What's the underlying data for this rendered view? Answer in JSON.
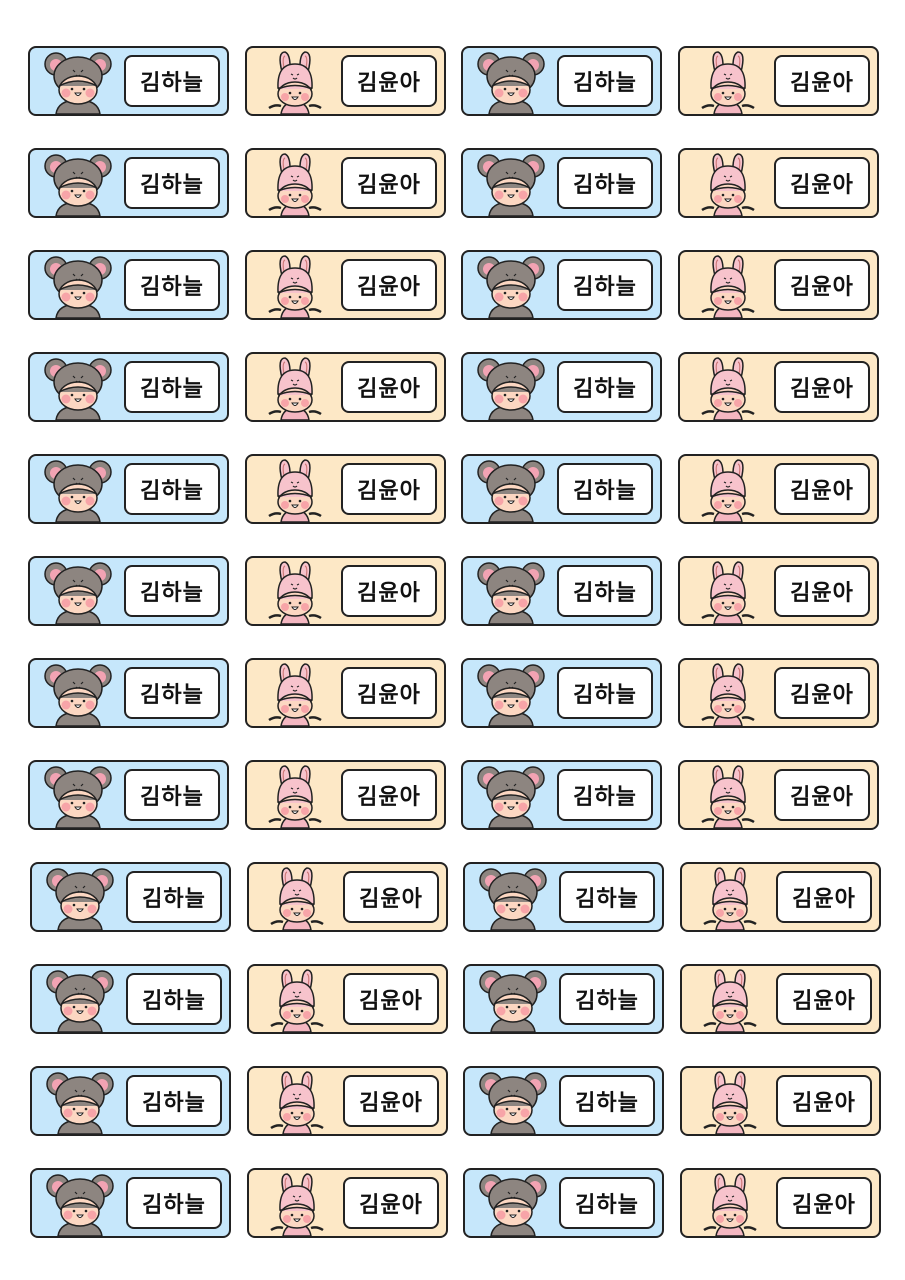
{
  "colors": {
    "mouse_bg": "#c6e7fb",
    "bunny_bg": "#fde8c6",
    "border": "#222222"
  },
  "sticker_types": {
    "mouse": {
      "name": "김하늘",
      "icon": "mouse-hat-child-icon"
    },
    "bunny": {
      "name": "김윤아",
      "icon": "bunny-hat-child-icon"
    }
  },
  "layout_pattern": [
    "mouse",
    "bunny",
    "mouse",
    "bunny"
  ],
  "rows": [
    [
      "김하늘",
      "김윤아",
      "김하늘",
      "김윤아"
    ],
    [
      "김하늘",
      "김윤아",
      "김하늘",
      "김윤아"
    ],
    [
      "김하늘",
      "김윤아",
      "김하늘",
      "김윤아"
    ],
    [
      "김하늘",
      "김윤아",
      "김하늘",
      "김윤아"
    ],
    [
      "김하늘",
      "김윤아",
      "김하늘",
      "김윤아"
    ],
    [
      "김하늘",
      "김윤아",
      "김하늘",
      "김윤아"
    ],
    [
      "김하늘",
      "김윤아",
      "김하늘",
      "김윤아"
    ],
    [
      "김하늘",
      "김윤아",
      "김하늘",
      "김윤아"
    ],
    [
      "김하늘",
      "김윤아",
      "김하늘",
      "김윤아"
    ],
    [
      "김하늘",
      "김윤아",
      "김하늘",
      "김윤아"
    ],
    [
      "김하늘",
      "김윤아",
      "김하늘",
      "김윤아"
    ],
    [
      "김하늘",
      "김윤아",
      "김하늘",
      "김윤아"
    ]
  ]
}
